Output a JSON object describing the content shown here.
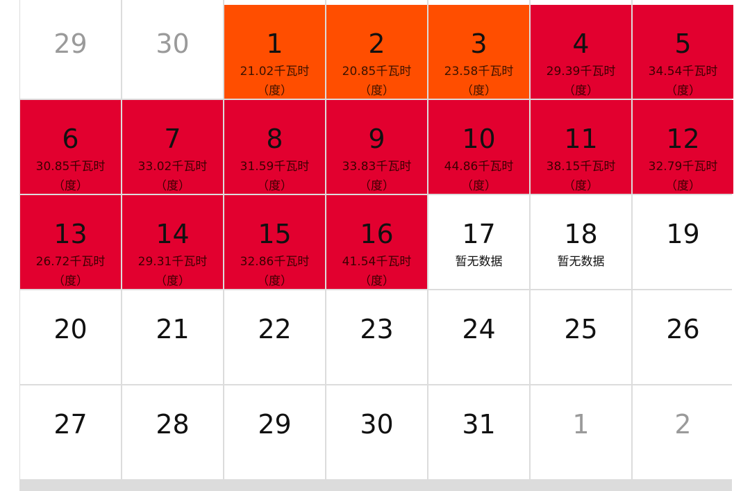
{
  "calendar": {
    "cells": [
      {
        "day": "29",
        "usage": "",
        "style": "muted"
      },
      {
        "day": "30",
        "usage": "",
        "style": "muted"
      },
      {
        "day": "1",
        "usage": "21.02千瓦时（度）",
        "style": "orange"
      },
      {
        "day": "2",
        "usage": "20.85千瓦时（度）",
        "style": "orange"
      },
      {
        "day": "3",
        "usage": "23.58千瓦时（度）",
        "style": "orange"
      },
      {
        "day": "4",
        "usage": "29.39千瓦时（度）",
        "style": "red"
      },
      {
        "day": "5",
        "usage": "34.54千瓦时（度）",
        "style": "red"
      },
      {
        "day": "6",
        "usage": "30.85千瓦时（度）",
        "style": "red"
      },
      {
        "day": "7",
        "usage": "33.02千瓦时（度）",
        "style": "red"
      },
      {
        "day": "8",
        "usage": "31.59千瓦时（度）",
        "style": "red"
      },
      {
        "day": "9",
        "usage": "33.83千瓦时（度）",
        "style": "red"
      },
      {
        "day": "10",
        "usage": "44.86千瓦时（度）",
        "style": "red"
      },
      {
        "day": "11",
        "usage": "38.15千瓦时（度）",
        "style": "red"
      },
      {
        "day": "12",
        "usage": "32.79千瓦时（度）",
        "style": "red"
      },
      {
        "day": "13",
        "usage": "26.72千瓦时（度）",
        "style": "red"
      },
      {
        "day": "14",
        "usage": "29.31千瓦时（度）",
        "style": "red"
      },
      {
        "day": "15",
        "usage": "32.86千瓦时（度）",
        "style": "red"
      },
      {
        "day": "16",
        "usage": "41.54千瓦时（度）",
        "style": "red"
      },
      {
        "day": "17",
        "usage": "暂无数据",
        "style": "white"
      },
      {
        "day": "18",
        "usage": "暂无数据",
        "style": "white"
      },
      {
        "day": "19",
        "usage": "",
        "style": "white"
      },
      {
        "day": "20",
        "usage": "",
        "style": "white"
      },
      {
        "day": "21",
        "usage": "",
        "style": "white"
      },
      {
        "day": "22",
        "usage": "",
        "style": "white"
      },
      {
        "day": "23",
        "usage": "",
        "style": "white"
      },
      {
        "day": "24",
        "usage": "",
        "style": "white"
      },
      {
        "day": "25",
        "usage": "",
        "style": "white"
      },
      {
        "day": "26",
        "usage": "",
        "style": "white"
      },
      {
        "day": "27",
        "usage": "",
        "style": "white"
      },
      {
        "day": "28",
        "usage": "",
        "style": "white"
      },
      {
        "day": "29",
        "usage": "",
        "style": "white"
      },
      {
        "day": "30",
        "usage": "",
        "style": "white"
      },
      {
        "day": "31",
        "usage": "",
        "style": "white"
      },
      {
        "day": "1",
        "usage": "",
        "style": "muted"
      },
      {
        "day": "2",
        "usage": "",
        "style": "muted"
      }
    ],
    "colors": {
      "orange": "#ff4e00",
      "red": "#e2002f",
      "white": "#ffffff",
      "muted_text": "#9a9a9a",
      "grid_line": "#dcdcdc"
    }
  }
}
